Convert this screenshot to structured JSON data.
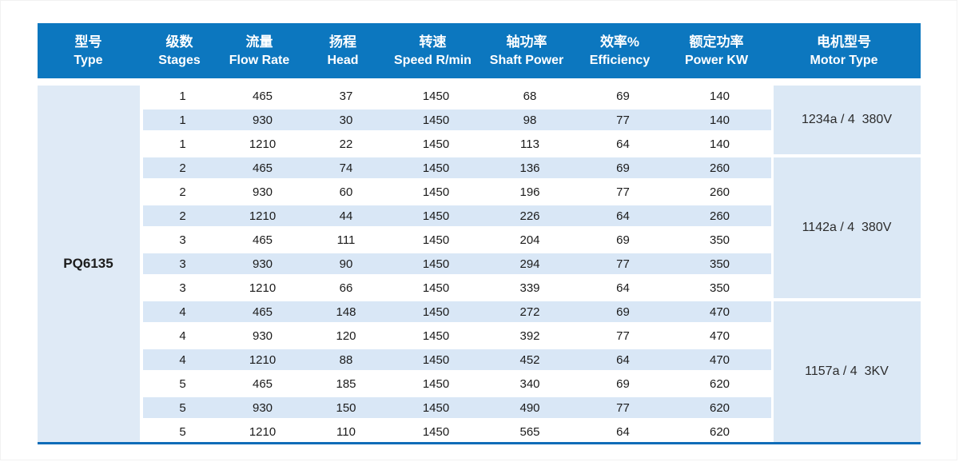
{
  "table": {
    "type_value": "PQ6135",
    "columns": [
      {
        "zh": "型号",
        "en": "Type"
      },
      {
        "zh": "级数",
        "en": "Stages"
      },
      {
        "zh": "流量",
        "en": "Flow Rate"
      },
      {
        "zh": "扬程",
        "en": "Head"
      },
      {
        "zh": "转速",
        "en": "Speed R/min"
      },
      {
        "zh": "轴功率",
        "en": "Shaft Power"
      },
      {
        "zh": "效率%",
        "en": "Efficiency"
      },
      {
        "zh": "额定功率",
        "en": "Power KW"
      },
      {
        "zh": "电机型号",
        "en": "Motor Type"
      }
    ],
    "rows": [
      {
        "stages": "1",
        "flow_rate": "465",
        "head": "37",
        "speed": "1450",
        "shaft_power": "68",
        "efficiency": "69",
        "power_kw": "140"
      },
      {
        "stages": "1",
        "flow_rate": "930",
        "head": "30",
        "speed": "1450",
        "shaft_power": "98",
        "efficiency": "77",
        "power_kw": "140"
      },
      {
        "stages": "1",
        "flow_rate": "1210",
        "head": "22",
        "speed": "1450",
        "shaft_power": "113",
        "efficiency": "64",
        "power_kw": "140"
      },
      {
        "stages": "2",
        "flow_rate": "465",
        "head": "74",
        "speed": "1450",
        "shaft_power": "136",
        "efficiency": "69",
        "power_kw": "260"
      },
      {
        "stages": "2",
        "flow_rate": "930",
        "head": "60",
        "speed": "1450",
        "shaft_power": "196",
        "efficiency": "77",
        "power_kw": "260"
      },
      {
        "stages": "2",
        "flow_rate": "1210",
        "head": "44",
        "speed": "1450",
        "shaft_power": "226",
        "efficiency": "64",
        "power_kw": "260"
      },
      {
        "stages": "3",
        "flow_rate": "465",
        "head": "111",
        "speed": "1450",
        "shaft_power": "204",
        "efficiency": "69",
        "power_kw": "350"
      },
      {
        "stages": "3",
        "flow_rate": "930",
        "head": "90",
        "speed": "1450",
        "shaft_power": "294",
        "efficiency": "77",
        "power_kw": "350"
      },
      {
        "stages": "3",
        "flow_rate": "1210",
        "head": "66",
        "speed": "1450",
        "shaft_power": "339",
        "efficiency": "64",
        "power_kw": "350"
      },
      {
        "stages": "4",
        "flow_rate": "465",
        "head": "148",
        "speed": "1450",
        "shaft_power": "272",
        "efficiency": "69",
        "power_kw": "470"
      },
      {
        "stages": "4",
        "flow_rate": "930",
        "head": "120",
        "speed": "1450",
        "shaft_power": "392",
        "efficiency": "77",
        "power_kw": "470"
      },
      {
        "stages": "4",
        "flow_rate": "1210",
        "head": "88",
        "speed": "1450",
        "shaft_power": "452",
        "efficiency": "64",
        "power_kw": "470"
      },
      {
        "stages": "5",
        "flow_rate": "465",
        "head": "185",
        "speed": "1450",
        "shaft_power": "340",
        "efficiency": "69",
        "power_kw": "620"
      },
      {
        "stages": "5",
        "flow_rate": "930",
        "head": "150",
        "speed": "1450",
        "shaft_power": "490",
        "efficiency": "77",
        "power_kw": "620"
      },
      {
        "stages": "5",
        "flow_rate": "1210",
        "head": "110",
        "speed": "1450",
        "shaft_power": "565",
        "efficiency": "64",
        "power_kw": "620"
      }
    ],
    "motor_groups": [
      {
        "label": "1234a / 4  380V",
        "row_span": 3
      },
      {
        "label": "1142a / 4  380V",
        "row_span": 6
      },
      {
        "label": "1157a / 4  3KV",
        "row_span": 6
      }
    ],
    "colors": {
      "header_bg": "#0c77bf",
      "row_stripe": "#d9e7f6",
      "type_col_bg": "#dfeaf6",
      "motor_bg": "#dbe8f5",
      "bottom_line": "#0f6cb8",
      "header_text": "#ffffff",
      "body_text": "#1b1b1b"
    }
  }
}
